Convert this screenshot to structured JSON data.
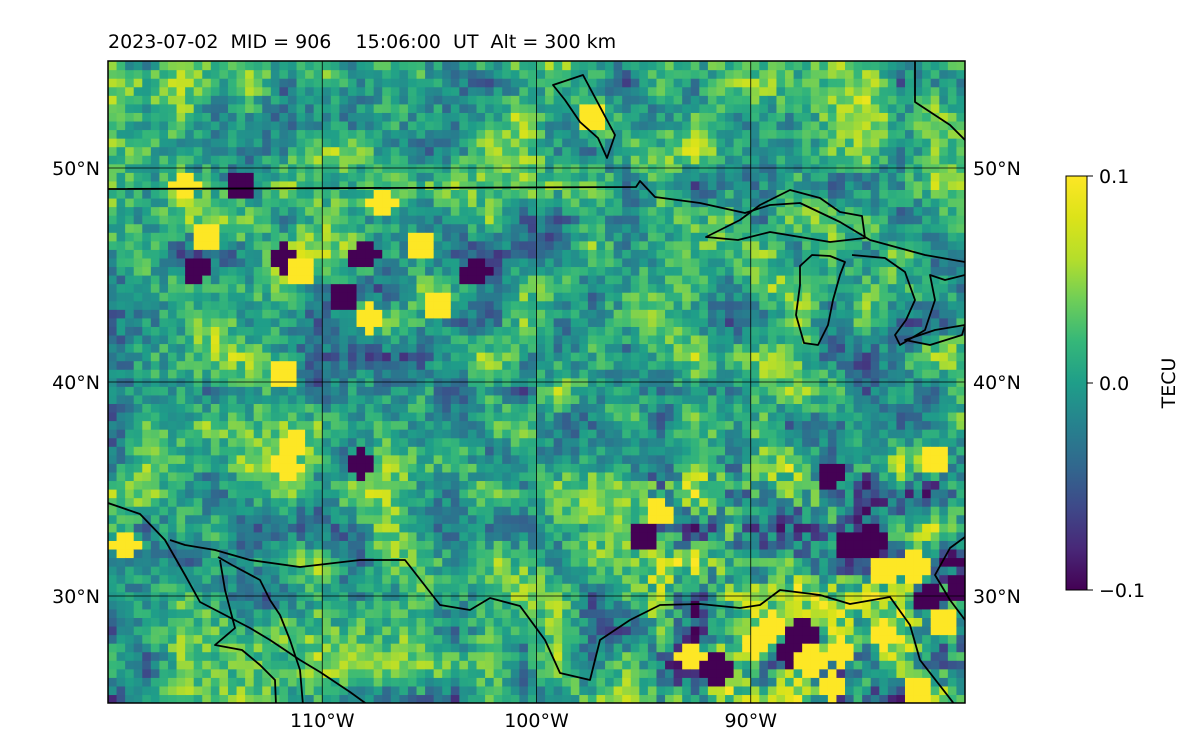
{
  "chart_data": {
    "type": "heatmap",
    "title": "2023-07-02  MID = 906    15:06:00  UT  Alt = 300 km",
    "xlabel": "",
    "ylabel": "",
    "xlim": [
      -120,
      -80
    ],
    "ylim": [
      25,
      55
    ],
    "x_ticks": [
      {
        "value": -110,
        "label": "110°W"
      },
      {
        "value": -100,
        "label": "100°W"
      },
      {
        "value": -90,
        "label": "90°W"
      }
    ],
    "y_ticks": [
      {
        "value": 30,
        "label": "30°N"
      },
      {
        "value": 40,
        "label": "40°N"
      },
      {
        "value": 50,
        "label": "50°N"
      }
    ],
    "colorbar": {
      "label": "TECU",
      "colormap": "viridis",
      "range": [
        -0.1,
        0.1
      ],
      "ticks": [
        {
          "value": 0.1,
          "label": "0.1"
        },
        {
          "value": 0.0,
          "label": "0.0"
        },
        {
          "value": -0.1,
          "label": "−0.1"
        }
      ]
    },
    "grid": true,
    "hotspots": [
      {
        "lon": -116.6,
        "lat": 48.9,
        "v": 0.1
      },
      {
        "lon": -115.6,
        "lat": 46.7,
        "v": 0.1
      },
      {
        "lon": -114.0,
        "lat": 48.9,
        "v": -0.1
      },
      {
        "lon": -112.0,
        "lat": 45.6,
        "v": -0.1
      },
      {
        "lon": -111.2,
        "lat": 45.0,
        "v": 0.1
      },
      {
        "lon": -116.1,
        "lat": 45.1,
        "v": -0.1
      },
      {
        "lon": -108.2,
        "lat": 45.7,
        "v": -0.1
      },
      {
        "lon": -107.9,
        "lat": 42.8,
        "v": 0.1
      },
      {
        "lon": -107.4,
        "lat": 48.2,
        "v": 0.1
      },
      {
        "lon": -105.6,
        "lat": 46.3,
        "v": 0.1
      },
      {
        "lon": -104.8,
        "lat": 43.5,
        "v": 0.1
      },
      {
        "lon": -103.0,
        "lat": 44.9,
        "v": -0.1
      },
      {
        "lon": -112.0,
        "lat": 40.2,
        "v": 0.1
      },
      {
        "lon": -111.5,
        "lat": 36.9,
        "v": 0.1
      },
      {
        "lon": -111.8,
        "lat": 35.9,
        "v": 0.1
      },
      {
        "lon": -108.4,
        "lat": 36.0,
        "v": -0.1
      },
      {
        "lon": -109.2,
        "lat": 43.8,
        "v": -0.1
      },
      {
        "lon": -119.4,
        "lat": 32.2,
        "v": 0.1
      },
      {
        "lon": -94.5,
        "lat": 33.7,
        "v": 0.1
      },
      {
        "lon": -95.2,
        "lat": 32.6,
        "v": -0.1
      },
      {
        "lon": -86.5,
        "lat": 35.5,
        "v": -0.1
      },
      {
        "lon": -85.6,
        "lat": 32.3,
        "v": -0.1
      },
      {
        "lon": -84.5,
        "lat": 32.4,
        "v": -0.1
      },
      {
        "lon": -81.5,
        "lat": 36.2,
        "v": 0.1
      },
      {
        "lon": -82.6,
        "lat": 31.2,
        "v": 0.1
      },
      {
        "lon": -84.0,
        "lat": 31.0,
        "v": 0.1
      },
      {
        "lon": -81.8,
        "lat": 29.7,
        "v": -0.1
      },
      {
        "lon": -80.4,
        "lat": 30.2,
        "v": -0.1
      },
      {
        "lon": -93.0,
        "lat": 27.0,
        "v": 0.1
      },
      {
        "lon": -91.8,
        "lat": 26.4,
        "v": -0.1
      },
      {
        "lon": -90.0,
        "lat": 27.6,
        "v": 0.1
      },
      {
        "lon": -89.2,
        "lat": 28.4,
        "v": 0.1
      },
      {
        "lon": -88.3,
        "lat": 27.1,
        "v": -0.1
      },
      {
        "lon": -87.8,
        "lat": 28.0,
        "v": -0.1
      },
      {
        "lon": -87.4,
        "lat": 26.8,
        "v": 0.1
      },
      {
        "lon": -86.3,
        "lat": 25.6,
        "v": 0.1
      },
      {
        "lon": -86.0,
        "lat": 27.2,
        "v": 0.1
      },
      {
        "lon": -84.0,
        "lat": 28.0,
        "v": 0.1
      },
      {
        "lon": -82.4,
        "lat": 25.4,
        "v": 0.1
      },
      {
        "lon": -81.2,
        "lat": 28.7,
        "v": 0.1
      },
      {
        "lon": -97.6,
        "lat": 52.3,
        "v": 0.1
      }
    ]
  }
}
